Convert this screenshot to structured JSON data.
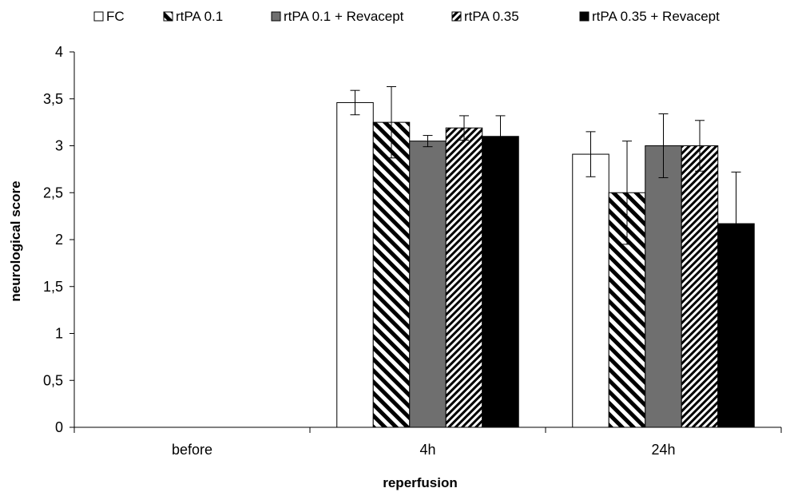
{
  "chart_data": {
    "type": "bar",
    "categories": [
      "before",
      "4h",
      "24h"
    ],
    "xlabel": "reperfusion",
    "ylabel": "neurological score",
    "ylim": [
      0,
      4
    ],
    "yticks": [
      "0",
      "0,5",
      "1",
      "1,5",
      "2",
      "2,5",
      "3",
      "3,5",
      "4"
    ],
    "grid": false,
    "legend_position": "top",
    "series": [
      {
        "name": "FC",
        "values": [
          null,
          3.46,
          2.91
        ],
        "errors": [
          null,
          0.13,
          0.24
        ],
        "pattern": "white"
      },
      {
        "name": "rtPA 0.1",
        "values": [
          null,
          3.25,
          2.5
        ],
        "errors": [
          null,
          0.38,
          0.55
        ],
        "pattern": "wide-diagonal"
      },
      {
        "name": "rtPA 0.1 + Revacept",
        "values": [
          null,
          3.05,
          3.0
        ],
        "errors": [
          null,
          0.06,
          0.34
        ],
        "pattern": "gray"
      },
      {
        "name": "rtPA 0.35",
        "values": [
          null,
          3.19,
          3.0
        ],
        "errors": [
          null,
          0.13,
          0.27
        ],
        "pattern": "narrow-diagonal"
      },
      {
        "name": "rtPA 0.35 + Revacept",
        "values": [
          null,
          3.1,
          2.17
        ],
        "errors": [
          null,
          0.22,
          0.55
        ],
        "pattern": "black"
      }
    ]
  }
}
